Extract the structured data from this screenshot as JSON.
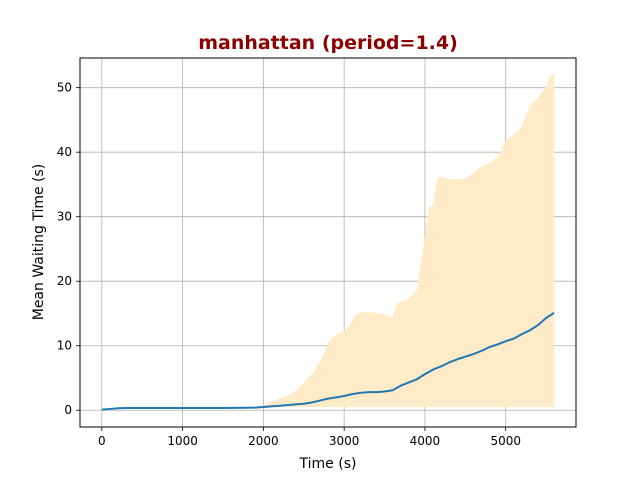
{
  "chart_data": {
    "type": "line",
    "title": "manhattan (period=1.4)",
    "title_color": "#8b0000",
    "xlabel": "Time (s)",
    "ylabel": "Mean Waiting Time (s)",
    "xlim": [
      -270,
      5870
    ],
    "ylim": [
      -2.6,
      54.6
    ],
    "xticks": [
      0,
      1000,
      2000,
      3000,
      4000,
      5000
    ],
    "yticks": [
      0,
      10,
      20,
      30,
      40,
      50
    ],
    "grid": true,
    "line_color": "#1f77b4",
    "band_color": "#ffebc8",
    "series": [
      {
        "x": [
          0,
          100,
          200,
          300,
          500,
          1000,
          1500,
          1900,
          2000,
          2100,
          2200,
          2300,
          2400,
          2500,
          2600,
          2700,
          2800,
          2900,
          3000,
          3100,
          3200,
          3300,
          3400,
          3500,
          3600,
          3700,
          3800,
          3900,
          4000,
          4100,
          4200,
          4300,
          4400,
          4500,
          4600,
          4700,
          4800,
          4900,
          5000,
          5100,
          5200,
          5300,
          5400,
          5500,
          5600
        ],
        "values": [
          0.1,
          0.2,
          0.3,
          0.35,
          0.35,
          0.35,
          0.35,
          0.4,
          0.5,
          0.6,
          0.7,
          0.8,
          0.9,
          1.0,
          1.2,
          1.5,
          1.8,
          2.0,
          2.2,
          2.5,
          2.7,
          2.8,
          2.8,
          2.9,
          3.1,
          3.8,
          4.3,
          4.8,
          5.6,
          6.3,
          6.8,
          7.4,
          7.9,
          8.3,
          8.7,
          9.2,
          9.8,
          10.2,
          10.7,
          11.1,
          11.8,
          12.4,
          13.2,
          14.3,
          15.1
        ]
      }
    ],
    "band": {
      "x": [
        0,
        100,
        200,
        300,
        500,
        1000,
        1500,
        1900,
        2000,
        2100,
        2200,
        2300,
        2400,
        2500,
        2600,
        2700,
        2750,
        2800,
        2900,
        3000,
        3100,
        3150,
        3200,
        3300,
        3400,
        3500,
        3600,
        3650,
        3700,
        3800,
        3900,
        4000,
        4050,
        4100,
        4150,
        4200,
        4300,
        4400,
        4500,
        4600,
        4700,
        4800,
        4900,
        5000,
        5100,
        5200,
        5300,
        5400,
        5500,
        5550,
        5600
      ],
      "upper": [
        0.1,
        0.2,
        0.3,
        0.35,
        0.35,
        0.35,
        0.35,
        0.4,
        0.7,
        1.3,
        1.8,
        2.3,
        3.0,
        4.3,
        5.6,
        7.6,
        8.7,
        10.5,
        11.8,
        12.2,
        13.8,
        14.8,
        15.1,
        15.3,
        15.1,
        14.9,
        14.3,
        16.6,
        16.8,
        17.3,
        18.6,
        26.9,
        31.5,
        31.9,
        35.9,
        36.2,
        35.8,
        35.8,
        35.9,
        36.8,
        37.8,
        38.3,
        39.4,
        41.7,
        42.7,
        44.0,
        47.2,
        48.4,
        50.2,
        51.8,
        52.2
      ],
      "lower": [
        0.1,
        0.2,
        0.3,
        0.35,
        0.35,
        0.35,
        0.35,
        0.4,
        0.5,
        0.5,
        0.5,
        0.5,
        0.5,
        0.5,
        0.5,
        0.5,
        0.5,
        0.5,
        0.5,
        0.5,
        0.5,
        0.5,
        0.5,
        0.5,
        0.5,
        0.5,
        0.5,
        0.5,
        0.5,
        0.5,
        0.5,
        0.5,
        0.5,
        0.5,
        0.5,
        0.5,
        0.5,
        0.5,
        0.5,
        0.5,
        0.5,
        0.5,
        0.5,
        0.5,
        0.5,
        0.5,
        0.5,
        0.5,
        0.5,
        0.5,
        0.5
      ]
    }
  }
}
